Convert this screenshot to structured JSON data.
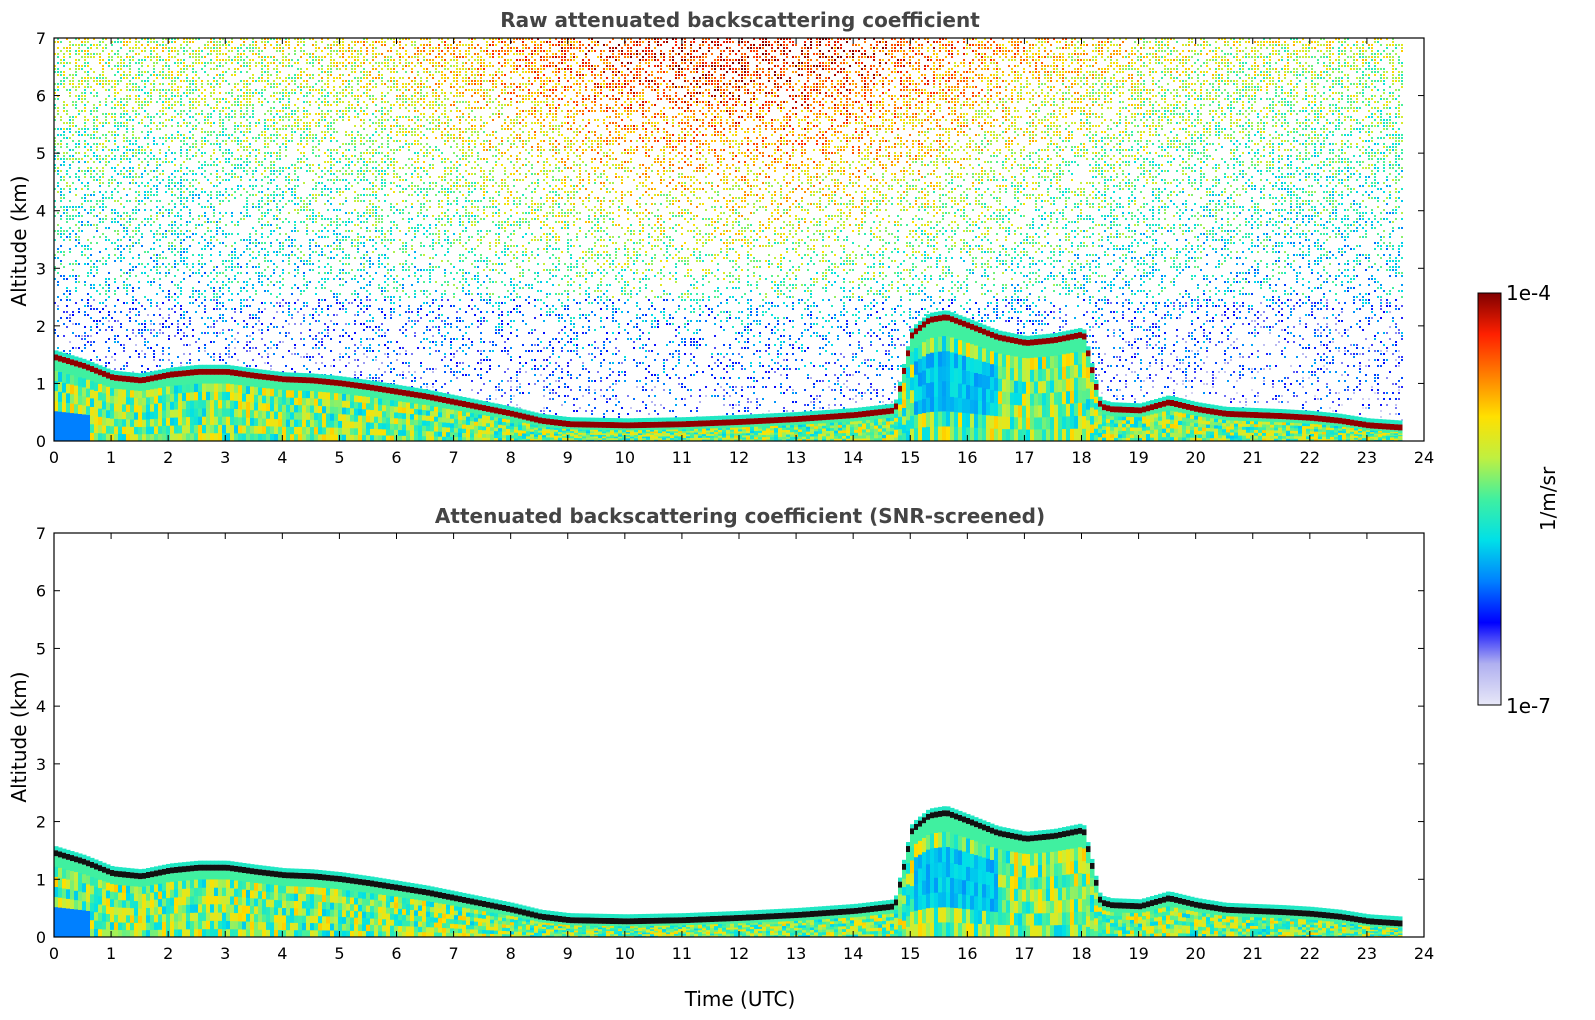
{
  "chart_data": [
    {
      "type": "heatmap",
      "title": "Raw attenuated backscattering coefficient",
      "xlabel": "",
      "ylabel": "Altitude (km)",
      "xlim": [
        0,
        24
      ],
      "ylim": [
        0,
        7
      ],
      "xticks": [
        "0",
        "1",
        "2",
        "3",
        "4",
        "5",
        "6",
        "7",
        "8",
        "9",
        "10",
        "11",
        "12",
        "13",
        "14",
        "15",
        "16",
        "17",
        "18",
        "19",
        "20",
        "21",
        "22",
        "23",
        "24"
      ],
      "yticks": [
        "0",
        "1",
        "2",
        "3",
        "4",
        "5",
        "6",
        "7"
      ],
      "data_end_hour": 23.6,
      "layer_top_km": {
        "hours": [
          0,
          0.5,
          1,
          1.5,
          2,
          2.5,
          3,
          3.5,
          4,
          4.5,
          5,
          5.5,
          6,
          6.5,
          7,
          7.5,
          8,
          8.5,
          9,
          10,
          11,
          12,
          13,
          14,
          14.7,
          15,
          15.3,
          15.6,
          16,
          16.5,
          17,
          17.5,
          18,
          18.3,
          18.5,
          19,
          19.5,
          20,
          20.5,
          21,
          21.5,
          22,
          22.5,
          23,
          23.6
        ],
        "values": [
          1.4,
          1.25,
          1.05,
          1.0,
          1.1,
          1.15,
          1.15,
          1.08,
          1.02,
          1.0,
          0.95,
          0.88,
          0.8,
          0.72,
          0.62,
          0.52,
          0.42,
          0.3,
          0.24,
          0.22,
          0.24,
          0.28,
          0.33,
          0.4,
          0.48,
          1.8,
          2.05,
          2.1,
          1.95,
          1.75,
          1.65,
          1.7,
          1.8,
          0.55,
          0.5,
          0.48,
          0.62,
          0.5,
          0.42,
          0.4,
          0.38,
          0.35,
          0.3,
          0.22,
          0.18
        ]
      },
      "noise_background": "high above 4 km around 8-16 UTC, moderate elsewhere"
    },
    {
      "type": "heatmap",
      "title": "Attenuated backscattering coefficient (SNR-screened)",
      "xlabel": "Time (UTC)",
      "ylabel": "Altitude (km)",
      "xlim": [
        0,
        24
      ],
      "ylim": [
        0,
        7
      ],
      "xticks": [
        "0",
        "1",
        "2",
        "3",
        "4",
        "5",
        "6",
        "7",
        "8",
        "9",
        "10",
        "11",
        "12",
        "13",
        "14",
        "15",
        "16",
        "17",
        "18",
        "19",
        "20",
        "21",
        "22",
        "23",
        "24"
      ],
      "yticks": [
        "0",
        "1",
        "2",
        "3",
        "4",
        "5",
        "6",
        "7"
      ],
      "data_end_hour": 23.6,
      "layer_top_km": {
        "hours": [
          0,
          0.5,
          1,
          1.5,
          2,
          2.5,
          3,
          3.5,
          4,
          4.5,
          5,
          5.5,
          6,
          6.5,
          7,
          7.5,
          8,
          8.5,
          9,
          10,
          11,
          12,
          13,
          14,
          14.7,
          15,
          15.3,
          15.6,
          16,
          16.5,
          17,
          17.5,
          18,
          18.3,
          18.5,
          19,
          19.5,
          20,
          20.5,
          21,
          21.5,
          22,
          22.5,
          23,
          23.6
        ],
        "values": [
          1.4,
          1.25,
          1.05,
          1.0,
          1.1,
          1.15,
          1.15,
          1.08,
          1.02,
          1.0,
          0.95,
          0.88,
          0.8,
          0.72,
          0.62,
          0.52,
          0.42,
          0.3,
          0.24,
          0.22,
          0.24,
          0.28,
          0.33,
          0.4,
          0.48,
          1.8,
          2.05,
          2.1,
          1.95,
          1.75,
          1.65,
          1.7,
          1.8,
          0.55,
          0.5,
          0.48,
          0.62,
          0.5,
          0.42,
          0.4,
          0.38,
          0.35,
          0.3,
          0.22,
          0.18
        ]
      },
      "screened": true
    }
  ],
  "colorbar": {
    "label": "1/m/sr",
    "max_label": "1e-4",
    "min_label": "1e-7",
    "scale": "log",
    "colors": [
      "#e8e8f8",
      "#b0b0f0",
      "#0000ff",
      "#0080ff",
      "#00e0e8",
      "#40f0a0",
      "#c0f040",
      "#ffe000",
      "#ff8000",
      "#ff2000",
      "#800000"
    ]
  }
}
